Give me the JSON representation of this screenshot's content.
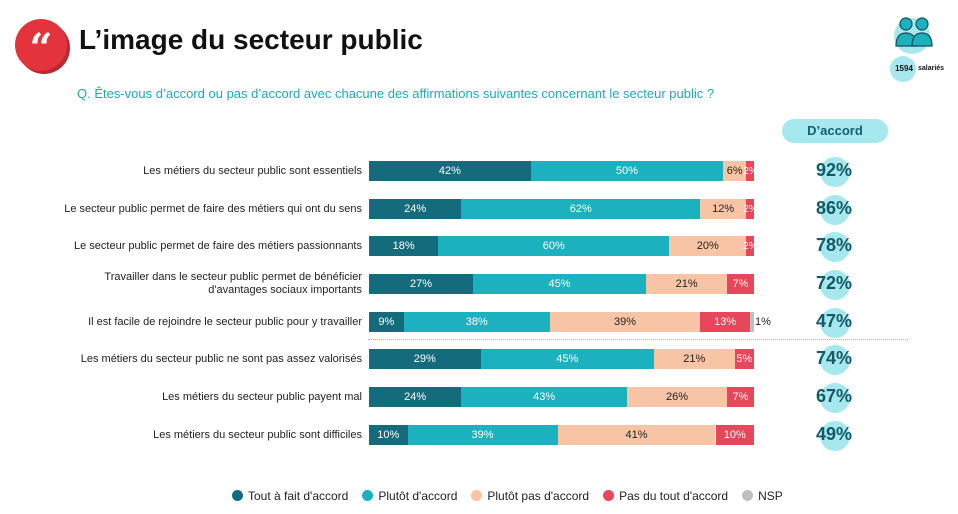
{
  "header": {
    "title": "L’image du secteur public",
    "quote_glyph": "“",
    "question": "Q. Êtes-vous d’accord ou pas d’accord avec chacune des affirmations suivantes concernant le secteur public ?",
    "sample_count": "1594",
    "sample_label": "salariés",
    "accord_header": "D’accord"
  },
  "colors": {
    "tout_a_fait": "#136b7c",
    "plutot_accord": "#1bb1bf",
    "plutot_pas": "#f7c4a6",
    "pas_du_tout": "#e6475a",
    "nsp": "#bfbfbf"
  },
  "chart_data": {
    "type": "bar",
    "orientation": "horizontal",
    "stacked": true,
    "categories": [
      "Les métiers du secteur public sont essentiels",
      "Le secteur public permet de faire des métiers qui ont du sens",
      "Le secteur public permet de faire des métiers passionnants",
      "Travailler dans le secteur public permet de bénéficier d'avantages sociaux importants",
      "Il est facile de rejoindre le secteur public pour y travailler",
      "Les métiers du secteur public ne sont pas assez valorisés",
      "Les métiers du secteur public payent mal",
      "Les métiers du secteur public sont difficiles"
    ],
    "label_lines": [
      [
        "Les métiers du secteur public sont essentiels"
      ],
      [
        "Le secteur public permet de faire des métiers qui ont du sens"
      ],
      [
        "Le secteur public permet de faire des métiers passionnants"
      ],
      [
        "Travailler dans le secteur public permet de bénéficier",
        "d'avantages sociaux importants"
      ],
      [
        "Il est facile de rejoindre le secteur public pour y travailler"
      ],
      [
        "Les métiers du secteur public ne sont pas assez valorisés"
      ],
      [
        "Les métiers du secteur public payent mal"
      ],
      [
        "Les métiers du secteur public sont difficiles"
      ]
    ],
    "series": [
      {
        "name": "Tout à fait d'accord",
        "values": [
          42,
          24,
          18,
          27,
          9,
          29,
          24,
          10
        ]
      },
      {
        "name": "Plutôt d'accord",
        "values": [
          50,
          62,
          60,
          45,
          38,
          45,
          43,
          39
        ]
      },
      {
        "name": "Plutôt pas d'accord",
        "values": [
          6,
          12,
          20,
          21,
          39,
          21,
          26,
          41
        ]
      },
      {
        "name": "Pas du tout d'accord",
        "values": [
          2,
          2,
          2,
          7,
          13,
          5,
          7,
          10
        ]
      },
      {
        "name": "NSP",
        "values": [
          0,
          0,
          0,
          0,
          1,
          0,
          0,
          0
        ]
      }
    ],
    "totals_accord": [
      "92%",
      "86%",
      "78%",
      "72%",
      "47%",
      "74%",
      "67%",
      "49%"
    ],
    "xlim": [
      0,
      100
    ],
    "legend_position": "bottom"
  }
}
